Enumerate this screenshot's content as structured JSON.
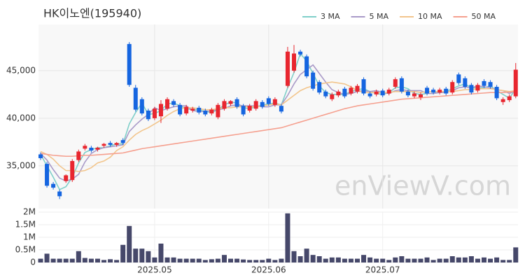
{
  "chart_data": {
    "type": "candlestick",
    "title": "HK이노엔(195940)",
    "watermark": "enViewV.com",
    "categories": [
      null,
      null,
      null,
      null,
      null,
      null,
      null,
      null,
      null,
      null,
      null,
      null,
      null,
      null,
      null,
      null,
      null,
      null,
      "2025.05",
      null,
      null,
      null,
      null,
      null,
      null,
      null,
      null,
      null,
      null,
      null,
      null,
      null,
      null,
      null,
      null,
      null,
      "2025.06",
      null,
      null,
      null,
      null,
      null,
      null,
      null,
      null,
      null,
      null,
      null,
      null,
      null,
      null,
      null,
      null,
      null,
      "2025.07",
      null,
      null,
      null,
      null,
      null,
      null,
      null,
      null,
      null,
      null,
      null,
      null,
      null,
      null,
      null,
      null,
      null,
      null,
      null,
      null,
      null
    ],
    "open": [
      36200,
      35200,
      33100,
      32300,
      33400,
      33500,
      35600,
      36800,
      36900,
      36700,
      37100,
      37400,
      37200,
      37700,
      47800,
      43200,
      42000,
      40800,
      40000,
      40200,
      41000,
      41800,
      41400,
      40500,
      40800,
      41100,
      40800,
      40500,
      40100,
      41000,
      41500,
      42000,
      41300,
      40800,
      41000,
      41700,
      42100,
      41400,
      41300,
      43400,
      45000,
      47000,
      46500,
      44800,
      43800,
      42800,
      42000,
      42400,
      43100,
      42600,
      42800,
      44100,
      42600,
      42500,
      42900,
      42600,
      43300,
      44200,
      42800,
      42300,
      42200,
      43200,
      43000,
      42700,
      43100,
      42700,
      44600,
      44200,
      43500,
      42900,
      43900,
      43800,
      43300,
      41700,
      41900,
      42300
    ],
    "high": [
      36400,
      35400,
      33300,
      32500,
      34100,
      35700,
      36700,
      37300,
      37100,
      37000,
      37400,
      37600,
      37500,
      37900,
      48000,
      43500,
      42200,
      41000,
      41200,
      41900,
      42200,
      42000,
      41600,
      41400,
      41200,
      41300,
      41000,
      41100,
      41600,
      42000,
      41900,
      42200,
      41500,
      41500,
      42000,
      41900,
      42300,
      42200,
      41500,
      47500,
      47700,
      47200,
      46700,
      45000,
      44000,
      43000,
      42700,
      43000,
      43300,
      43400,
      43600,
      44300,
      42800,
      43000,
      43100,
      43200,
      44300,
      44400,
      43000,
      42800,
      42700,
      43400,
      43200,
      43200,
      43300,
      44000,
      44800,
      44400,
      43700,
      43700,
      44100,
      44000,
      43500,
      42200,
      42500,
      45800
    ],
    "low": [
      35600,
      32700,
      32500,
      31500,
      33200,
      33300,
      35400,
      36600,
      36400,
      36500,
      36900,
      37000,
      37000,
      37200,
      43300,
      40700,
      40300,
      39700,
      39800,
      39500,
      40800,
      41200,
      40200,
      40300,
      40600,
      40400,
      40200,
      40300,
      39900,
      40800,
      41300,
      41000,
      40200,
      40600,
      40800,
      41000,
      41300,
      41200,
      40500,
      43200,
      44800,
      46500,
      44200,
      42900,
      42500,
      42100,
      41800,
      42200,
      42100,
      42400,
      42600,
      42400,
      42100,
      42300,
      42200,
      42400,
      43100,
      42600,
      42200,
      42100,
      41900,
      42400,
      42500,
      42500,
      42400,
      42500,
      43500,
      43100,
      42500,
      42700,
      43200,
      43100,
      41900,
      41400,
      41700,
      42100
    ],
    "close": [
      35800,
      32900,
      32700,
      31800,
      34000,
      35500,
      36500,
      37100,
      36600,
      36900,
      37300,
      37200,
      37400,
      37400,
      43500,
      40900,
      40500,
      39900,
      41000,
      41500,
      42000,
      41400,
      40400,
      41200,
      41000,
      40600,
      40400,
      40900,
      41400,
      41800,
      41800,
      41200,
      40400,
      41300,
      41800,
      41200,
      41500,
      42000,
      40700,
      47000,
      46800,
      46700,
      44400,
      43100,
      42700,
      42300,
      42500,
      42800,
      42300,
      43200,
      43400,
      42600,
      42300,
      42800,
      42400,
      43000,
      44100,
      42800,
      42400,
      42600,
      42500,
      42600,
      42700,
      43000,
      42600,
      43800,
      43700,
      43300,
      42700,
      43500,
      43400,
      43300,
      42100,
      42000,
      42300,
      45100
    ],
    "up_color": "#e8262f",
    "down_color": "#1565e0",
    "series": [
      {
        "name": "3 MA",
        "color": "#7fcfc9",
        "values": [
          36200,
          35000,
          33800,
          32500,
          32800,
          33800,
          35300,
          36400,
          36700,
          36900,
          36900,
          37100,
          37300,
          37300,
          39400,
          40600,
          41600,
          40400,
          40500,
          40800,
          41500,
          41600,
          41300,
          41000,
          40900,
          40900,
          40700,
          40600,
          40900,
          41400,
          41700,
          41600,
          41100,
          41000,
          41200,
          41400,
          41500,
          41600,
          41400,
          43200,
          44800,
          46800,
          46000,
          44700,
          43400,
          42700,
          42500,
          42500,
          42500,
          42800,
          43000,
          43100,
          42800,
          42600,
          42500,
          42700,
          43200,
          43300,
          43100,
          42600,
          42500,
          42600,
          42600,
          42800,
          42800,
          43100,
          43400,
          43600,
          43200,
          43200,
          43200,
          43400,
          42900,
          42500,
          42100,
          43100
        ]
      },
      {
        "name": "5 MA",
        "color": "#a99ac8",
        "values": [
          36300,
          35600,
          34600,
          33700,
          33400,
          33600,
          34100,
          35400,
          36300,
          36700,
          36900,
          37000,
          37100,
          37200,
          38600,
          39300,
          39900,
          40400,
          41100,
          40800,
          41000,
          41200,
          41300,
          41300,
          40800,
          40700,
          40700,
          40800,
          40900,
          41000,
          41300,
          41400,
          41300,
          41300,
          41300,
          41200,
          41200,
          41400,
          41400,
          42400,
          43600,
          44600,
          45100,
          45600,
          44700,
          43800,
          43000,
          42700,
          42500,
          42600,
          42800,
          42900,
          42800,
          42900,
          42700,
          42600,
          42900,
          43000,
          42900,
          42900,
          42900,
          42600,
          42600,
          42700,
          42700,
          42900,
          43200,
          43300,
          43200,
          43400,
          43300,
          43200,
          43000,
          42900,
          42600,
          42900
        ]
      },
      {
        "name": "10 MA",
        "color": "#f2c58c",
        "values": [
          36500,
          36200,
          35700,
          35000,
          34500,
          34500,
          34400,
          34500,
          34800,
          35300,
          35500,
          35900,
          36600,
          37000,
          37700,
          38300,
          38700,
          39000,
          39400,
          39800,
          40300,
          40700,
          41000,
          41100,
          41100,
          41000,
          40900,
          40900,
          41000,
          41100,
          41100,
          41200,
          41200,
          41200,
          41200,
          41300,
          41400,
          41500,
          41400,
          41900,
          42400,
          42900,
          43200,
          43400,
          43600,
          43700,
          43800,
          43700,
          43600,
          43300,
          42900,
          42700,
          42700,
          42700,
          42700,
          42700,
          42800,
          42800,
          42800,
          42800,
          42700,
          42800,
          42800,
          42800,
          42800,
          42800,
          42900,
          43000,
          43000,
          43100,
          43100,
          43100,
          43000,
          42900,
          42800,
          42900
        ]
      },
      {
        "name": "50 MA",
        "color": "#f5a08f",
        "values": [
          36300,
          36200,
          36100,
          36050,
          36000,
          36000,
          36050,
          36100,
          36100,
          36150,
          36200,
          36250,
          36300,
          36350,
          36500,
          36650,
          36800,
          36900,
          37000,
          37100,
          37200,
          37300,
          37400,
          37500,
          37600,
          37700,
          37800,
          37900,
          38000,
          38100,
          38200,
          38300,
          38400,
          38500,
          38600,
          38700,
          38800,
          38900,
          39000,
          39200,
          39400,
          39600,
          39800,
          40000,
          40200,
          40400,
          40600,
          40800,
          41000,
          41150,
          41300,
          41400,
          41500,
          41600,
          41700,
          41800,
          41900,
          42000,
          42050,
          42100,
          42150,
          42200,
          42250,
          42300,
          42350,
          42400,
          42450,
          42500,
          42550,
          42600,
          42650,
          42700,
          42700,
          42700,
          42750,
          42800
        ]
      }
    ],
    "ylim": [
      30500,
      49850
    ],
    "yticks": [
      {
        "value": 35000,
        "label": "35,000"
      },
      {
        "value": 40000,
        "label": "40,000"
      },
      {
        "value": 45000,
        "label": "45,000"
      }
    ],
    "volume": {
      "color": "#46486a",
      "ylim": [
        0,
        2000000
      ],
      "yticks": [
        0,
        {
          "value": 500000,
          "label": "0.5M"
        },
        {
          "value": 1000000,
          "label": "1M"
        },
        {
          "value": 1500000,
          "label": "1.5M"
        },
        {
          "value": 2000000,
          "label": "2M"
        }
      ],
      "values": [
        150000,
        350000,
        150000,
        150000,
        150000,
        150000,
        450000,
        180000,
        150000,
        150000,
        100000,
        130000,
        100000,
        700000,
        1450000,
        550000,
        550000,
        450000,
        200000,
        750000,
        200000,
        200000,
        150000,
        150000,
        150000,
        150000,
        100000,
        130000,
        150000,
        300000,
        150000,
        150000,
        120000,
        100000,
        100000,
        100000,
        150000,
        100000,
        150000,
        1950000,
        450000,
        250000,
        550000,
        300000,
        250000,
        150000,
        200000,
        200000,
        150000,
        150000,
        150000,
        300000,
        200000,
        150000,
        150000,
        100000,
        200000,
        250000,
        150000,
        150000,
        150000,
        200000,
        100000,
        150000,
        150000,
        250000,
        200000,
        200000,
        250000,
        150000,
        200000,
        150000,
        200000,
        100000,
        100000,
        600000
      ]
    },
    "grid": true
  }
}
